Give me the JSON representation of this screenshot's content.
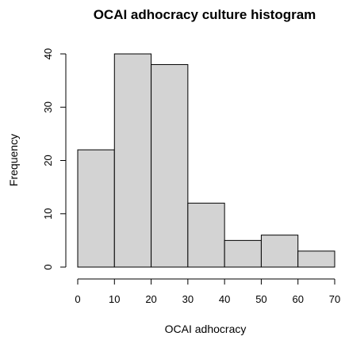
{
  "chart_data": {
    "type": "bar",
    "title": "OCAI adhocracy culture histogram",
    "xlabel": "OCAI adhocracy",
    "ylabel": "Frequency",
    "bins": [
      [
        0,
        10
      ],
      [
        10,
        20
      ],
      [
        20,
        30
      ],
      [
        30,
        40
      ],
      [
        40,
        50
      ],
      [
        50,
        60
      ],
      [
        60,
        70
      ]
    ],
    "values": [
      22,
      40,
      38,
      12,
      5,
      6,
      3
    ],
    "xlim": [
      0,
      70
    ],
    "ylim": [
      0,
      40
    ],
    "xticks": [
      "0",
      "10",
      "20",
      "30",
      "40",
      "50",
      "60",
      "70"
    ],
    "yticks": [
      "0",
      "10",
      "20",
      "30",
      "40"
    ],
    "grid": false,
    "bar_color": "#d3d3d3"
  }
}
